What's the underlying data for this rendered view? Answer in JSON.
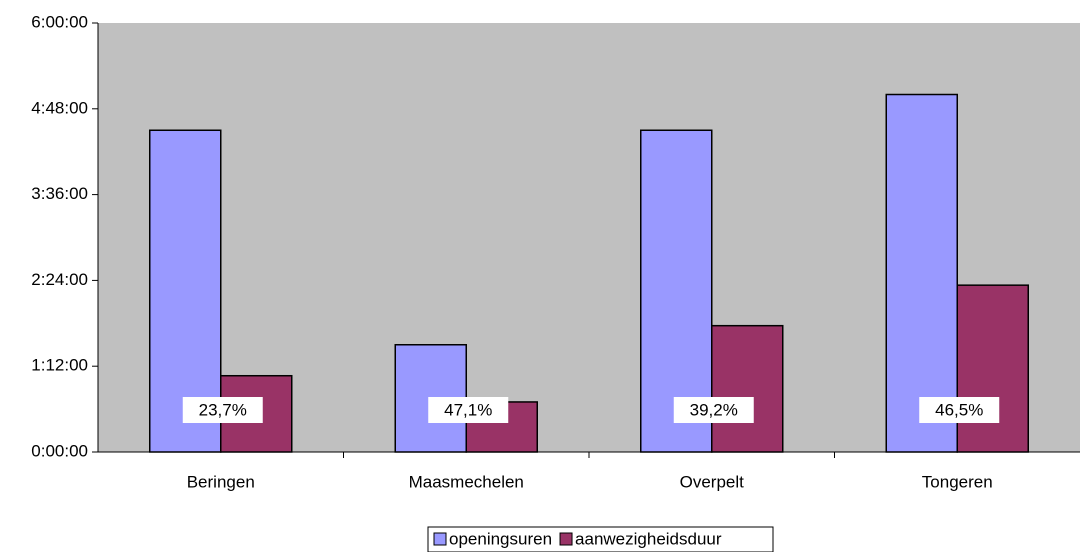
{
  "chart_data": {
    "type": "bar",
    "categories": [
      "Beringen",
      "Maasmechelen",
      "Overpelt",
      "Tongeren"
    ],
    "series": [
      {
        "name": "openingsuren",
        "color": "#9999ff",
        "values": [
          270,
          90,
          270,
          300
        ]
      },
      {
        "name": "aanwezigheidsduur",
        "color": "#993366",
        "values": [
          64,
          42,
          106,
          140
        ]
      }
    ],
    "annotations": [
      "23,7%",
      "47,1%",
      "39,2%",
      "46,5%"
    ],
    "ylim": [
      0,
      360
    ],
    "yticks": [
      {
        "value": 0,
        "label": "0:00:00"
      },
      {
        "value": 72,
        "label": "1:12:00"
      },
      {
        "value": 144,
        "label": "2:24:00"
      },
      {
        "value": 216,
        "label": "3:36:00"
      },
      {
        "value": 288,
        "label": "4:48:00"
      },
      {
        "value": 360,
        "label": "6:00:00"
      }
    ],
    "plot_background": "#c0c0c0",
    "legend": "bottom"
  }
}
